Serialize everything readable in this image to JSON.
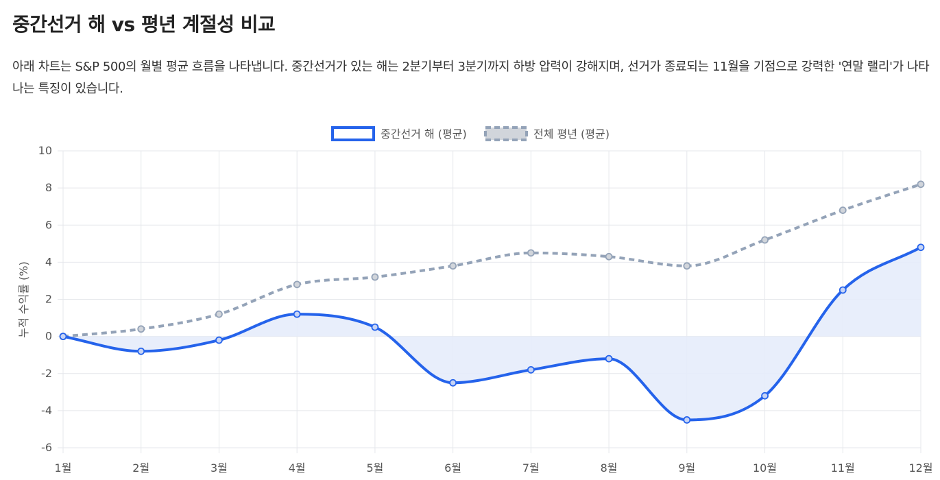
{
  "header": {
    "title": "중간선거 해 vs 평년 계절성 비교",
    "description": "아래 차트는 S&P 500의 월별 평균 흐름을 나타냅니다. 중간선거가 있는 해는 2분기부터 3분기까지 하방 압력이 강해지며, 선거가 종료되는 11월을 기점으로 강력한 '연말 랠리'가 나타나는 특징이 있습니다."
  },
  "chart_data": {
    "type": "line",
    "categories": [
      "1월",
      "2월",
      "3월",
      "4월",
      "5월",
      "6월",
      "7월",
      "8월",
      "9월",
      "10월",
      "11월",
      "12월"
    ],
    "series": [
      {
        "name": "중간선거 해 (평균)",
        "values": [
          0,
          -0.8,
          -0.2,
          1.2,
          0.5,
          -2.5,
          -1.8,
          -1.2,
          -4.5,
          -3.2,
          2.5,
          4.8
        ],
        "color": "#2563eb",
        "fill": "#e6ecfb",
        "style": "solid",
        "filled": true
      },
      {
        "name": "전체 평년 (평균)",
        "values": [
          0,
          0.4,
          1.2,
          2.8,
          3.2,
          3.8,
          4.5,
          4.3,
          3.8,
          5.2,
          6.8,
          8.2
        ],
        "color": "#94a3b8",
        "fill": "#d1d5db",
        "style": "dashed",
        "filled": false
      }
    ],
    "ylabel": "누적 수익률 (%)",
    "xlabel": "",
    "ylim": [
      -6,
      10
    ],
    "yticks": [
      -6,
      -4,
      -2,
      0,
      2,
      4,
      6,
      8,
      10
    ],
    "grid": true,
    "legend": "top-center"
  }
}
